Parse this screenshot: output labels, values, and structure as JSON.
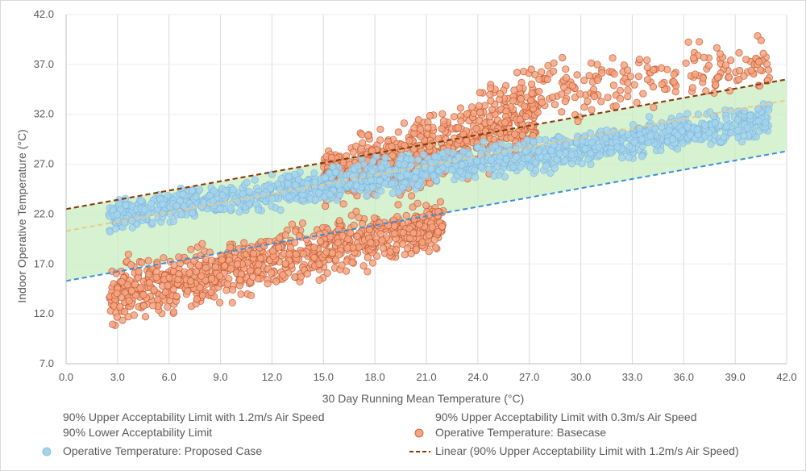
{
  "chart_data": {
    "type": "scatter",
    "xlabel": "30 Day Running Mean Temperature (°C)",
    "ylabel": "Indoor Operative Temperature (°C)",
    "xlim": [
      0,
      42
    ],
    "ylim": [
      7,
      42
    ],
    "xticks": [
      "0.0",
      "3.0",
      "6.0",
      "9.0",
      "12.0",
      "15.0",
      "18.0",
      "21.0",
      "24.0",
      "27.0",
      "30.0",
      "33.0",
      "36.0",
      "39.0",
      "42.0"
    ],
    "yticks": [
      "7.0",
      "12.0",
      "17.0",
      "22.0",
      "27.0",
      "32.0",
      "37.0",
      "42.0"
    ],
    "grid": "vertical",
    "legend_position": "bottom",
    "series": [
      {
        "name": "90% Upper Acceptability Limit with 1.2m/s Air Speed",
        "kind": "dashed-line",
        "color": "#c8642b",
        "points": [
          [
            0,
            22.5
          ],
          [
            42,
            35.5
          ]
        ]
      },
      {
        "name": "90% Upper Acceptability Limit with 0.3m/s Air Speed",
        "kind": "dashed-line",
        "color": "#e8c98a",
        "points": [
          [
            0,
            20.3
          ],
          [
            42,
            33.4
          ]
        ]
      },
      {
        "name": "90% Lower Acceptability Limit",
        "kind": "dashed-line",
        "color": "#3b8fd9",
        "points": [
          [
            0,
            15.3
          ],
          [
            42,
            28.3
          ]
        ]
      },
      {
        "name": "Operative Temperature: Basecase",
        "kind": "scatter",
        "color": "#f4a582",
        "clusters": [
          {
            "x_range": [
              2.5,
              22.0
            ],
            "y_at_start": [
              9.8,
              18.0
            ],
            "y_at_end": [
              17.5,
              24.5
            ]
          },
          {
            "x_range": [
              15.0,
              27.5
            ],
            "y_at_start": [
              21.5,
              29.5
            ],
            "y_at_end": [
              26.0,
              36.5
            ]
          },
          {
            "x_range": [
              24.0,
              41.0
            ],
            "y_at_start": [
              30.0,
              37.5
            ],
            "y_at_end": [
              33.0,
              41.0
            ]
          }
        ]
      },
      {
        "name": "Operative Temperature: Proposed Case",
        "kind": "scatter",
        "color": "#a6d3ec",
        "clusters": [
          {
            "x_range": [
              2.5,
              41.0
            ],
            "y_at_start": [
              19.5,
              24.0
            ],
            "y_at_end": [
              29.0,
              34.0
            ]
          }
        ]
      },
      {
        "name": "Linear (90% Upper Acceptability Limit with 1.2m/s Air Speed)",
        "kind": "dashed-line",
        "color": "#843c0c",
        "points": [
          [
            0,
            22.5
          ],
          [
            42,
            35.5
          ]
        ]
      }
    ],
    "band": {
      "from_series": "90% Lower Acceptability Limit",
      "to_series": "90% Upper Acceptability Limit with 1.2m/s Air Speed",
      "color": "#c9eec0"
    },
    "colors": {
      "axis": "#bfbfbf",
      "grid": "#d9d9d9",
      "text": "#595959"
    }
  }
}
